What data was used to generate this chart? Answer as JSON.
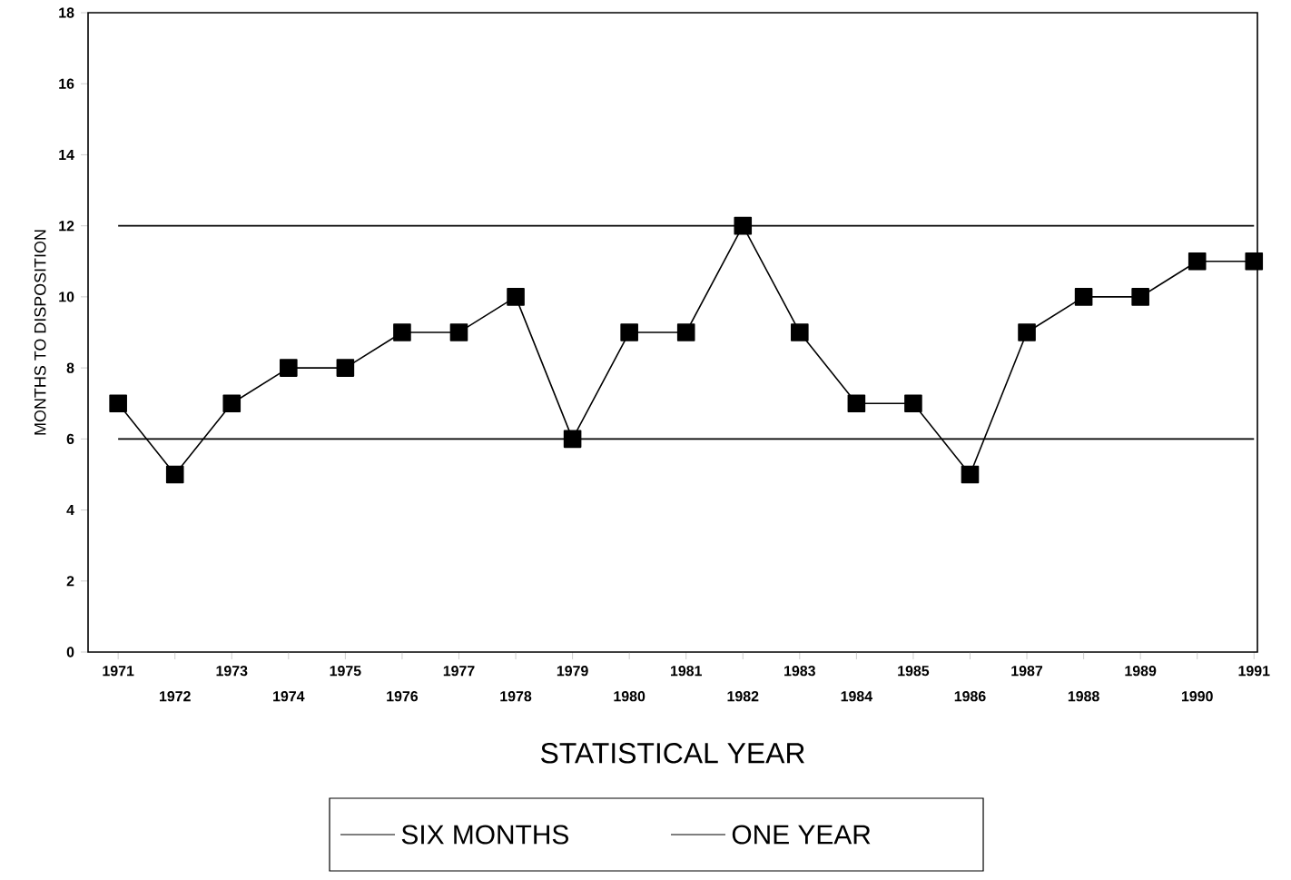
{
  "chart_data": {
    "type": "line",
    "xlabel": "STATISTICAL YEAR",
    "ylabel": "MONTHS TO DISPOSITION",
    "categories": [
      "1971",
      "1972",
      "1973",
      "1974",
      "1975",
      "1976",
      "1977",
      "1978",
      "1979",
      "1980",
      "1981",
      "1982",
      "1983",
      "1984",
      "1985",
      "1986",
      "1987",
      "1988",
      "1989",
      "1990",
      "1991"
    ],
    "series": [
      {
        "color": "#000000",
        "values": [
          7,
          5,
          7,
          8,
          8,
          9,
          9,
          10,
          6,
          9,
          9,
          12,
          9,
          7,
          7,
          5,
          9,
          10,
          10,
          11,
          11
        ]
      }
    ],
    "ylim": [
      0,
      18
    ],
    "yticks": [
      0,
      2,
      4,
      6,
      8,
      10,
      12,
      14,
      16,
      18
    ],
    "ref_lines": [
      {
        "axis": "y",
        "value": 6,
        "label": "SIX MONTHS",
        "color": "#000000"
      },
      {
        "axis": "y",
        "value": 12,
        "label": "ONE YEAR",
        "color": "#000000"
      }
    ],
    "legend": "bottom",
    "marker": "square",
    "line_style": "solid",
    "grid": false
  }
}
